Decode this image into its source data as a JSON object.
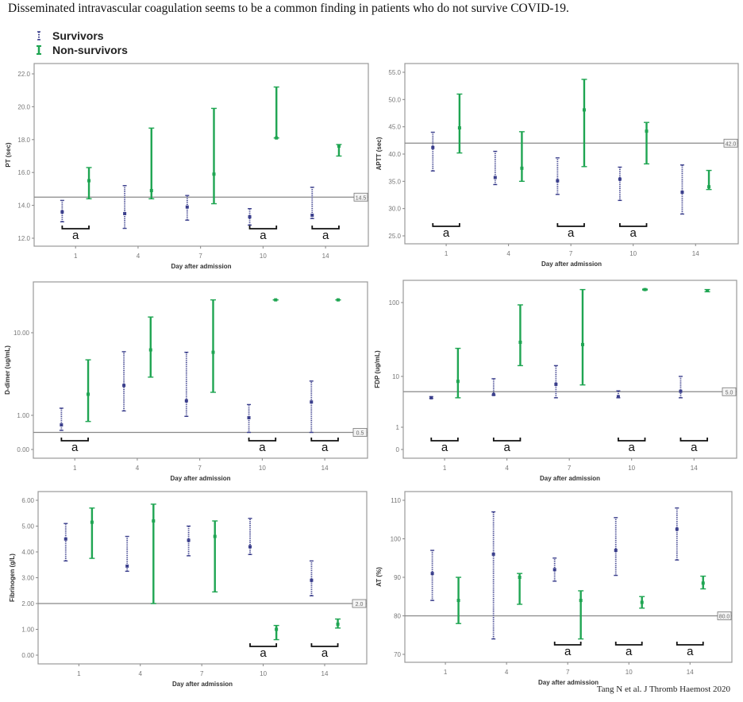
{
  "title": "Disseminated intravascular coagulation seems to be a common finding in patients who do not survive COVID-19.",
  "legend": {
    "survivors": "Survivors",
    "non_survivors": "Non-survivors"
  },
  "citation": "Tang N et al.  J Thromb Haemost 2020",
  "colors": {
    "survivors": "#3b3f8c",
    "non_survivors": "#1fa552",
    "reference": "#888888"
  },
  "significance_mark": "a",
  "chart_data": [
    {
      "type": "errorbar",
      "ylabel": "PT (sec)",
      "xlabel": "Day after admission",
      "categories": [
        "1",
        "4",
        "7",
        "10",
        "14"
      ],
      "scale": "linear",
      "yticks": [
        "12.0",
        "14.0",
        "16.0",
        "18.0",
        "20.0",
        "22.0"
      ],
      "ylim": [
        11.5,
        22.6
      ],
      "reference": {
        "value": 14.5,
        "label": "14.5"
      },
      "significant": [
        "1",
        "10",
        "14"
      ],
      "series": [
        {
          "name": "Survivors",
          "mean": [
            13.6,
            13.5,
            13.9,
            13.3,
            13.4
          ],
          "low": [
            13.0,
            12.6,
            13.1,
            12.8,
            13.2
          ],
          "high": [
            14.3,
            15.2,
            14.6,
            13.8,
            15.1
          ]
        },
        {
          "name": "Non-survivors",
          "mean": [
            15.5,
            14.9,
            15.9,
            18.1,
            17.6
          ],
          "low": [
            14.4,
            14.4,
            14.1,
            18.1,
            17.0
          ],
          "high": [
            16.3,
            18.7,
            19.9,
            21.2,
            17.7
          ]
        }
      ]
    },
    {
      "type": "errorbar",
      "ylabel": "APTT (sec)",
      "xlabel": "Day after admission",
      "categories": [
        "1",
        "4",
        "7",
        "10",
        "14"
      ],
      "scale": "linear",
      "yticks": [
        "25.0",
        "30.0",
        "35.0",
        "40.0",
        "45.0",
        "50.0",
        "55.0"
      ],
      "ylim": [
        23.5,
        56.5
      ],
      "reference": {
        "value": 42.0,
        "label": "42.0"
      },
      "significant": [
        "1",
        "7",
        "10"
      ],
      "series": [
        {
          "name": "Survivors",
          "mean": [
            41.2,
            35.7,
            35.1,
            35.4,
            33.0
          ],
          "low": [
            36.9,
            34.4,
            32.6,
            31.5,
            29.0
          ],
          "high": [
            44.0,
            40.5,
            39.3,
            37.6,
            38.0
          ]
        },
        {
          "name": "Non-survivors",
          "mean": [
            44.8,
            37.4,
            48.1,
            44.2,
            34.0
          ],
          "low": [
            40.2,
            35.0,
            37.7,
            38.2,
            33.5
          ],
          "high": [
            51.0,
            44.1,
            53.7,
            45.8,
            37.0
          ]
        }
      ]
    },
    {
      "type": "errorbar",
      "ylabel": "D-dimer (ug/mL)",
      "xlabel": "Day after admission",
      "categories": [
        "1",
        "4",
        "7",
        "10",
        "14"
      ],
      "scale": "log (linear below 1)",
      "yticks": [
        "0.00",
        "1.00",
        "10.00"
      ],
      "ylim": [
        0,
        41
      ],
      "reference": {
        "value": 0.5,
        "label": "0.5"
      },
      "significant": [
        "1",
        "10",
        "14"
      ],
      "series": [
        {
          "name": "Survivors",
          "mean": [
            0.72,
            2.3,
            1.5,
            0.93,
            1.45
          ],
          "low": [
            0.56,
            1.13,
            0.97,
            0.5,
            0.5
          ],
          "high": [
            1.22,
            5.9,
            5.8,
            1.35,
            2.6
          ]
        },
        {
          "name": "Non-survivors",
          "mean": [
            1.8,
            6.2,
            5.8,
            25,
            25
          ],
          "low": [
            0.82,
            2.9,
            1.9,
            25,
            25
          ],
          "high": [
            4.7,
            15.5,
            25,
            25,
            25
          ]
        }
      ]
    },
    {
      "type": "errorbar",
      "ylabel": "FDP (ug/mL)",
      "xlabel": "Day after admission",
      "categories": [
        "1",
        "4",
        "7",
        "10",
        "14"
      ],
      "scale": "log (linear below 1)",
      "yticks": [
        "0",
        "1",
        "10",
        "100"
      ],
      "ylim": [
        0,
        205
      ],
      "reference": {
        "value": 5.0,
        "label": "5.0"
      },
      "significant": [
        "1",
        "4",
        "10",
        "14"
      ],
      "series": [
        {
          "name": "Survivors",
          "mean": [
            3.8,
            4.4,
            7.0,
            4.0,
            5.1
          ],
          "low": [
            3.7,
            4.3,
            3.8,
            3.8,
            3.8
          ],
          "high": [
            4.0,
            9.0,
            14,
            5.2,
            10
          ]
        },
        {
          "name": "Non-survivors",
          "mean": [
            8.0,
            29,
            27,
            150,
            145
          ],
          "low": [
            3.8,
            14,
            6.8,
            148,
            140
          ],
          "high": [
            24,
            93,
            150,
            152,
            150
          ]
        }
      ]
    },
    {
      "type": "errorbar",
      "ylabel": "Fibrinogen (g/L)",
      "xlabel": "Day after admission",
      "categories": [
        "1",
        "4",
        "7",
        "10",
        "14"
      ],
      "scale": "linear",
      "yticks": [
        "0.00",
        "1.00",
        "2.00",
        "3.00",
        "4.00",
        "5.00",
        "6.00"
      ],
      "ylim": [
        -0.33,
        6.33
      ],
      "reference": {
        "value": 2.0,
        "label": "2.0"
      },
      "significant": [
        "10",
        "14"
      ],
      "series": [
        {
          "name": "Survivors",
          "mean": [
            4.5,
            3.45,
            4.45,
            4.2,
            2.9
          ],
          "low": [
            3.65,
            3.25,
            3.85,
            3.9,
            2.3
          ],
          "high": [
            5.1,
            4.6,
            5.0,
            5.3,
            3.65
          ]
        },
        {
          "name": "Non-survivors",
          "mean": [
            5.15,
            5.2,
            4.6,
            1.0,
            1.2
          ],
          "low": [
            3.75,
            2.0,
            2.45,
            0.6,
            1.05
          ],
          "high": [
            5.7,
            5.85,
            5.2,
            1.15,
            1.4
          ]
        }
      ]
    },
    {
      "type": "errorbar",
      "ylabel": "AT (%)",
      "xlabel": "Day after admission",
      "categories": [
        "1",
        "4",
        "7",
        "10",
        "14"
      ],
      "scale": "linear",
      "yticks": [
        "70",
        "80",
        "90",
        "100",
        "110"
      ],
      "ylim": [
        68,
        112
      ],
      "reference": {
        "value": 80.0,
        "label": "80.0"
      },
      "significant": [
        "7",
        "10",
        "14"
      ],
      "series": [
        {
          "name": "Survivors",
          "mean": [
            91,
            96,
            92,
            97,
            102.5
          ],
          "low": [
            84,
            74,
            89,
            90.5,
            94.5
          ],
          "high": [
            97,
            107,
            95,
            105.5,
            108
          ]
        },
        {
          "name": "Non-survivors",
          "mean": [
            84,
            90,
            84,
            83.5,
            88.5
          ],
          "low": [
            78,
            83,
            74,
            82,
            87
          ],
          "high": [
            90,
            91,
            86.5,
            85,
            90.3
          ]
        }
      ]
    }
  ]
}
